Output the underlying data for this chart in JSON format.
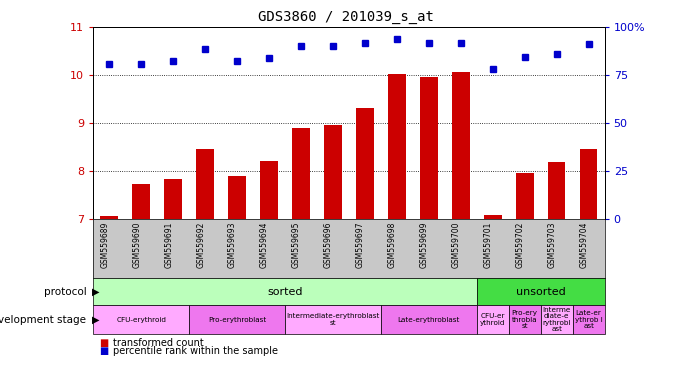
{
  "title": "GDS3860 / 201039_s_at",
  "samples": [
    "GSM559689",
    "GSM559690",
    "GSM559691",
    "GSM559692",
    "GSM559693",
    "GSM559694",
    "GSM559695",
    "GSM559696",
    "GSM559697",
    "GSM559698",
    "GSM559699",
    "GSM559700",
    "GSM559701",
    "GSM559702",
    "GSM559703",
    "GSM559704"
  ],
  "bar_values": [
    7.05,
    7.73,
    7.83,
    8.45,
    7.9,
    8.2,
    8.9,
    8.95,
    9.3,
    10.02,
    9.95,
    10.05,
    7.08,
    7.95,
    8.18,
    8.45
  ],
  "dot_values": [
    80.5,
    80.5,
    82.0,
    88.5,
    82.0,
    84.0,
    90.0,
    90.0,
    91.5,
    93.5,
    91.5,
    91.5,
    78.0,
    84.5,
    86.0,
    91.0
  ],
  "bar_color": "#cc0000",
  "dot_color": "#0000cc",
  "ylim_left": [
    7,
    11
  ],
  "ylim_right": [
    0,
    100
  ],
  "yticks_left": [
    7,
    8,
    9,
    10,
    11
  ],
  "yticks_right": [
    0,
    25,
    50,
    75,
    100
  ],
  "protocol_sorted_cols": 12,
  "protocol_unsorted_cols": 4,
  "protocol_color_sorted": "#bbffbb",
  "protocol_color_unsorted": "#44dd44",
  "dev_stages": [
    {
      "label": "CFU-erythroid",
      "start": 0,
      "end": 2,
      "color": "#ffaaff"
    },
    {
      "label": "Pro-erythroblast",
      "start": 3,
      "end": 5,
      "color": "#ee77ee"
    },
    {
      "label": "Intermediate-erythroblast\nst",
      "start": 6,
      "end": 8,
      "color": "#ffaaff"
    },
    {
      "label": "Late-erythroblast",
      "start": 9,
      "end": 11,
      "color": "#ee77ee"
    },
    {
      "label": "CFU-er\nythroid",
      "start": 12,
      "end": 12,
      "color": "#ffaaff"
    },
    {
      "label": "Pro-ery\nthrobla\nst",
      "start": 13,
      "end": 13,
      "color": "#ee77ee"
    },
    {
      "label": "Interme\ndiate-e\nrythrobl\nast",
      "start": 14,
      "end": 14,
      "color": "#ffaaff"
    },
    {
      "label": "Late-er\nythrob l\nast",
      "start": 15,
      "end": 15,
      "color": "#ee77ee"
    }
  ],
  "legend_red_label": "transformed count",
  "legend_blue_label": "percentile rank within the sample",
  "right_axis_label_color": "#0000cc",
  "left_axis_label_color": "#cc0000",
  "xlabel_area_color": "#c8c8c8",
  "n_samples": 16
}
